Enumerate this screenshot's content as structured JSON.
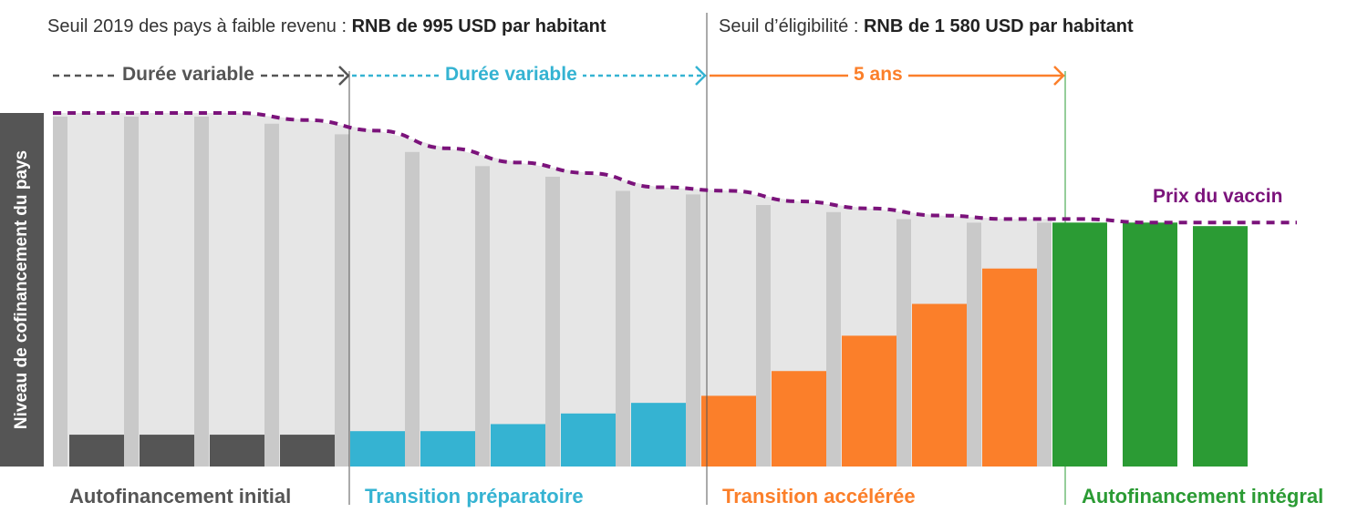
{
  "thresholds": {
    "low_income_prefix": "Seuil 2019 des pays à faible revenu : ",
    "low_income_value": "RNB de 995 USD par habitant",
    "eligibility_prefix": "Seuil d’éligibilité : ",
    "eligibility_value": "RNB de 1 580 USD par habitant"
  },
  "durations": {
    "initial": "Durée variable",
    "preparatory": "Durée variable",
    "accelerated": "5 ans"
  },
  "phases": {
    "initial": "Autofinancement initial",
    "preparatory": "Transition préparatoire",
    "accelerated": "Transition accélérée",
    "full": "Autofinancement intégral"
  },
  "y_axis_label": "Niveau de cofinancement du pays",
  "price_label": "Prix du vaccin",
  "colors": {
    "initial": "#555555",
    "preparatory": "#35b3d2",
    "accelerated": "#fb7f2a",
    "full": "#2b9b34",
    "price_line": "#7b137b",
    "background_bar": "#e6e6e6",
    "divider": "#c9c9c9"
  },
  "chart_data": {
    "type": "bar",
    "title": "",
    "ylabel": "Niveau de cofinancement du pays",
    "ylim": [
      0,
      100
    ],
    "grid": false,
    "x": [
      1,
      2,
      3,
      4,
      5,
      6,
      7,
      8,
      9,
      10,
      11,
      12,
      13,
      14,
      15,
      16,
      17
    ],
    "series": [
      {
        "name": "Autofinancement initial",
        "values": [
          9,
          9,
          9,
          9,
          0,
          0,
          0,
          0,
          0,
          0,
          0,
          0,
          0,
          0,
          0,
          0,
          0
        ]
      },
      {
        "name": "Transition préparatoire",
        "values": [
          0,
          0,
          0,
          0,
          10,
          10,
          12,
          15,
          18,
          0,
          0,
          0,
          0,
          0,
          0,
          0,
          0
        ]
      },
      {
        "name": "Transition accélérée",
        "values": [
          0,
          0,
          0,
          0,
          0,
          0,
          0,
          0,
          0,
          20,
          27,
          37,
          46,
          56,
          0,
          0,
          0
        ]
      },
      {
        "name": "Autofinancement intégral",
        "values": [
          0,
          0,
          0,
          0,
          0,
          0,
          0,
          0,
          0,
          0,
          0,
          0,
          0,
          0,
          69,
          69,
          68
        ]
      },
      {
        "name": "Prix du vaccin",
        "values": [
          100,
          100,
          100,
          98,
          95,
          90,
          86,
          83,
          79,
          78,
          75,
          73,
          71,
          70,
          70,
          69,
          69
        ]
      }
    ]
  }
}
